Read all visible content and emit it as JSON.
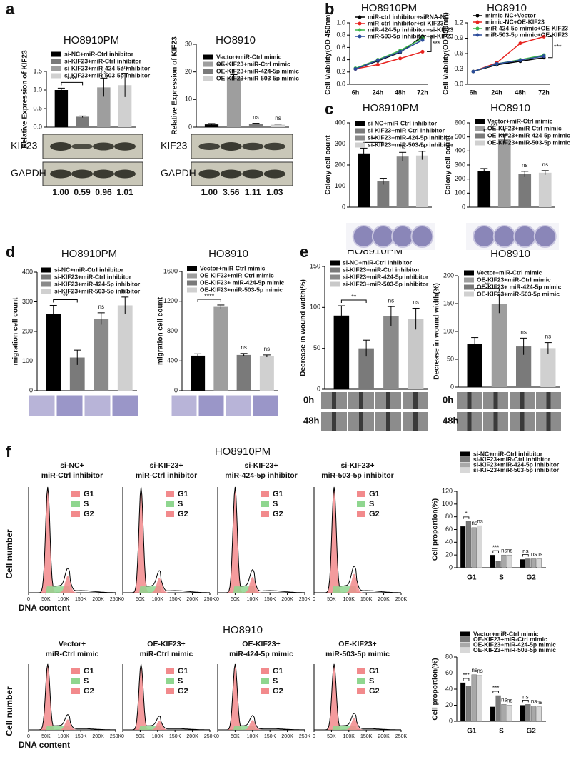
{
  "panel_labels": [
    "a",
    "b",
    "c",
    "d",
    "e",
    "f"
  ],
  "blots": [
    {
      "bands": [
        "KIF23",
        "GAPDH"
      ],
      "quant": [
        "1.00",
        "0.59",
        "0.96",
        "1.01"
      ]
    },
    {
      "bands": [
        "KIF23",
        "GAPDH"
      ],
      "quant": [
        "1.00",
        "3.56",
        "1.11",
        "1.03"
      ]
    }
  ],
  "wound_times": [
    "0h",
    "48h"
  ],
  "flow": {
    "sections": [
      {
        "title": "HO8910PM",
        "samples": [
          [
            "si-NC+",
            "miR-Ctrl inhibitor"
          ],
          [
            "si-KIF23+",
            "miR-Ctrl inhibitor"
          ],
          [
            "si-KIF23+",
            "miR-424-5p inhibitor"
          ],
          [
            "si-KIF23+",
            "miR-503-5p inhibitor"
          ]
        ]
      },
      {
        "title": "HO8910",
        "samples": [
          [
            "Vector+",
            "miR-Ctrl mimic"
          ],
          [
            "OE-KIF23+",
            "miR-Ctrl mimic"
          ],
          [
            "OE-KIF23+",
            "miR-424-5p mimic"
          ],
          [
            "OE-KIF23+",
            "miR-503-5p mimic"
          ]
        ]
      }
    ],
    "phases": [
      "G1",
      "S",
      "G2"
    ],
    "phase_colors": [
      "#f28a8c",
      "#8fd68f",
      "#f28a8c"
    ],
    "xticks": [
      "0",
      "50K",
      "100K",
      "150K",
      "200K",
      "250K"
    ],
    "y_label": "Cell number",
    "x_label": "DNA content"
  },
  "chart_data": [
    {
      "type": "bar",
      "title": "HO8910PM",
      "y_label": "Relative Expression of KIF23",
      "categories": [
        "si-NC+miR-Ctrl inhibitor",
        "si-KIF23+miR-Ctrl inhibitor",
        "si-KIF23+miR-424-5p inhibitor",
        "si-KIF23+miR-503-5p inhibitor"
      ],
      "colors": [
        "#000000",
        "#7a7a7a",
        "#9e9e9e",
        "#d0d0d0"
      ],
      "values": [
        1.0,
        0.28,
        1.07,
        1.13
      ],
      "errors": [
        0.05,
        0.02,
        0.25,
        0.32
      ],
      "sig": [
        null,
        "****",
        "ns",
        "ns"
      ],
      "ylim": [
        0,
        1.5
      ],
      "yticks": [
        {
          "value": 0,
          "label": "0.0"
        },
        {
          "value": 0.5,
          "label": "0.5"
        },
        {
          "value": 1,
          "label": "1.0"
        },
        {
          "value": 1.5,
          "label": "1.5"
        }
      ]
    },
    {
      "type": "bar",
      "title": "HO8910",
      "y_label": "Relative Expression of KIF23",
      "categories": [
        "Vector+miR-Ctrl mimic",
        "OE-KIF23+miR-Ctrl mimic",
        "OE-KIF23+miR-424-5p mimic",
        "OE-KIF23+miR-503-5p mimic"
      ],
      "colors": [
        "#000000",
        "#9e9e9e",
        "#7a7a7a",
        "#d0d0d0"
      ],
      "values": [
        1.0,
        18,
        1.1,
        0.9
      ],
      "errors": [
        0.3,
        1,
        0.3,
        0.2
      ],
      "sig": [
        null,
        "****",
        "ns",
        "ns"
      ],
      "ylim": [
        0,
        30
      ],
      "yticks": [
        0,
        10,
        20,
        30
      ]
    },
    {
      "type": "line",
      "title": "HO8910PM",
      "y_label": "Cell Viability(OD 450nm)",
      "categories": [
        "6h",
        "24h",
        "48h",
        "72h"
      ],
      "series": [
        {
          "name": "miR-ctrl inhibitor+siRNA-NC",
          "color": "#000000",
          "values": [
            0.25,
            0.38,
            0.52,
            0.78
          ]
        },
        {
          "name": "miR-ctrl inhibitor+si-KIF23",
          "color": "#e8231f",
          "values": [
            0.25,
            0.32,
            0.42,
            0.53
          ]
        },
        {
          "name": "miR-424-5p inhibitor+si-KIF23",
          "color": "#3cb44b",
          "values": [
            0.26,
            0.4,
            0.55,
            0.75
          ]
        },
        {
          "name": "miR-503-5p inhibitor+si-KIF23",
          "color": "#2b4c9b",
          "values": [
            0.25,
            0.39,
            0.53,
            0.72
          ]
        }
      ],
      "sig": "***",
      "ylim": [
        0,
        1
      ],
      "yticks": [
        {
          "value": 0,
          "label": "0.0"
        },
        {
          "value": 0.2,
          "label": "0.2"
        },
        {
          "value": 0.4,
          "label": "0.4"
        },
        {
          "value": 0.6,
          "label": "0.6"
        },
        {
          "value": 0.8,
          "label": "0.8"
        },
        {
          "value": 1,
          "label": "1.0"
        }
      ]
    },
    {
      "type": "line",
      "title": "HO8910",
      "y_label": "Cell Viability(OD 450nm)",
      "categories": [
        "6h",
        "24h",
        "48h",
        "72h"
      ],
      "series": [
        {
          "name": "mimic-NC+Vector",
          "color": "#000000",
          "values": [
            0.25,
            0.38,
            0.45,
            0.52
          ]
        },
        {
          "name": "mimic-NC+OE-KIF23",
          "color": "#e8231f",
          "values": [
            0.25,
            0.42,
            0.8,
            0.93
          ]
        },
        {
          "name": "miR-424-5p mimic+OE-KIF23",
          "color": "#3cb44b",
          "values": [
            0.25,
            0.4,
            0.48,
            0.57
          ]
        },
        {
          "name": "miR-503-5p mimic+OE-KIF23",
          "color": "#2b4c9b",
          "values": [
            0.25,
            0.4,
            0.47,
            0.55
          ]
        }
      ],
      "sig": "***",
      "ylim": [
        0,
        1.2
      ],
      "yticks": [
        {
          "value": 0,
          "label": "0.0"
        },
        {
          "value": 0.3,
          "label": "0.3"
        },
        {
          "value": 0.6,
          "label": "0.6"
        },
        {
          "value": 0.9,
          "label": "0.9"
        },
        {
          "value": 1.2,
          "label": "1.2"
        }
      ]
    },
    {
      "type": "bar",
      "title": "HO8910PM",
      "y_label": "Colony cell count",
      "categories": [
        "si-NC+miR-Ctrl inhibitor",
        "si-KIF23+miR-Ctrl inhibitor",
        "si-KIF23+miR-424-5p inhibitor",
        "si-KIF23+miR-503-5p inhibitor"
      ],
      "colors": [
        "#000000",
        "#7a7a7a",
        "#8a8a8a",
        "#d0d0d0"
      ],
      "values": [
        255,
        122,
        240,
        245
      ],
      "errors": [
        25,
        15,
        20,
        20
      ],
      "sig": [
        null,
        "**",
        "ns",
        "ns"
      ],
      "ylim": [
        0,
        400
      ],
      "yticks": [
        0,
        100,
        200,
        300,
        400
      ]
    },
    {
      "type": "bar",
      "title": "HO8910",
      "y_label": "Colony cell count",
      "categories": [
        "Vector+miR-Ctrl mimic",
        "OE-KIF23+miR-Ctrl mimic",
        "OE-KIF23+miR-424-5p mimic",
        "OE-KIF23+miR-503-5p mimic"
      ],
      "colors": [
        "#000000",
        "#9e9e9e",
        "#7a7a7a",
        "#d0d0d0"
      ],
      "values": [
        255,
        485,
        235,
        245
      ],
      "errors": [
        20,
        30,
        20,
        15
      ],
      "sig": [
        null,
        "***",
        "ns",
        "ns"
      ],
      "ylim": [
        0,
        600
      ],
      "yticks": [
        0,
        100,
        200,
        300,
        400,
        500,
        600
      ]
    },
    {
      "type": "bar",
      "title": "HO8910PM",
      "y_label": "migration cell count",
      "categories": [
        "si-NC+miR-Ctrl inhibitor",
        "si-KIF23+miR-Ctrl inhibitor",
        "si-KIF23+miR-424-5p inhibitor",
        "si-KIF23+miR-503-5p inhibitor"
      ],
      "colors": [
        "#000000",
        "#7a7a7a",
        "#8a8a8a",
        "#d0d0d0"
      ],
      "values": [
        260,
        112,
        243,
        288
      ],
      "errors": [
        28,
        25,
        20,
        28
      ],
      "sig": [
        null,
        "**",
        "ns",
        "ns"
      ],
      "ylim": [
        0,
        400
      ],
      "yticks": [
        0,
        100,
        200,
        300,
        400
      ]
    },
    {
      "type": "bar",
      "title": "HO8910",
      "y_label": "migration cell count",
      "categories": [
        "Vector+miR-Ctrl mimic",
        "OE-KIF23+miR-Ctrl mimic",
        "OE-KIF23+ miR-424-5p mimic",
        "OE-KIF23+miR-503-5p mimic"
      ],
      "colors": [
        "#000000",
        "#9e9e9e",
        "#7a7a7a",
        "#d0d0d0"
      ],
      "values": [
        470,
        1125,
        480,
        465
      ],
      "errors": [
        25,
        25,
        20,
        15
      ],
      "sig": [
        null,
        "****",
        "ns",
        "ns"
      ],
      "ylim": [
        0,
        1600
      ],
      "yticks": [
        0,
        400,
        800,
        1200,
        1600
      ]
    },
    {
      "type": "bar",
      "title": "HO8910PM",
      "y_label": "Decrease in wound width(%)",
      "categories": [
        "si-NC+miR-Ctrl inhibitor",
        "si-KIF23+miR-Ctrl inhibitor",
        "si-KIF23+miR-424-5p inhibitor",
        "si-KIF23+miR-503-5p inhibitor"
      ],
      "colors": [
        "#000000",
        "#7a7a7a",
        "#8a8a8a",
        "#c8c8c8"
      ],
      "values": [
        90,
        50,
        89,
        86
      ],
      "errors": [
        12,
        10,
        12,
        13
      ],
      "sig": [
        null,
        "**",
        "ns",
        "ns"
      ],
      "ylim": [
        0,
        150
      ],
      "yticks": [
        0,
        50,
        100,
        150
      ]
    },
    {
      "type": "bar",
      "title": "HO8910",
      "y_label": "Decrease in wound width(%)",
      "categories": [
        "Vector+miR-Ctrl mimic",
        "OE-KIF23+miR-Ctrl mimic",
        "OE-KIF23+ miR-424-5p mimic",
        "OE-KIF23+miR-503-5p mimic"
      ],
      "colors": [
        "#000000",
        "#9e9e9e",
        "#7a7a7a",
        "#d0d0d0"
      ],
      "values": [
        77,
        150,
        73,
        70
      ],
      "errors": [
        12,
        17,
        15,
        10
      ],
      "sig": [
        null,
        "**",
        "ns",
        "ns"
      ],
      "ylim": [
        0,
        200
      ],
      "yticks": [
        0,
        50,
        100,
        150,
        200
      ]
    },
    {
      "type": "grouped_bar",
      "y_label": "Cell proportion(%)",
      "categories": [
        "G1",
        "S",
        "G2"
      ],
      "series": [
        {
          "name": "si-NC+miR-Ctrl inhibitor",
          "color": "#000000",
          "values": [
            65,
            20,
            13
          ],
          "sig": [
            null,
            null,
            null
          ]
        },
        {
          "name": "si-KIF23+miR-Ctrl inhibitor",
          "color": "#7a7a7a",
          "values": [
            73,
            10,
            14
          ],
          "sig": [
            "*",
            "***",
            "ns"
          ]
        },
        {
          "name": "si-KIF23+miR-424-5p inhibitor",
          "color": "#a8a8a8",
          "values": [
            63,
            20,
            14
          ],
          "sig": [
            "ns",
            "ns",
            "ns"
          ]
        },
        {
          "name": "si-KIF23+miR-503-5p inhibitor",
          "color": "#d8d8d8",
          "values": [
            66,
            20,
            14
          ],
          "sig": [
            "ns",
            "ns",
            "ns"
          ]
        }
      ],
      "ylim": [
        0,
        120
      ],
      "yticks": [
        0,
        20,
        40,
        60,
        80,
        100,
        120
      ]
    },
    {
      "type": "grouped_bar",
      "y_label": "Cell proportion(%)",
      "categories": [
        "G1",
        "S",
        "G2"
      ],
      "series": [
        {
          "name": "Vector+miR-Ctrl mimic",
          "color": "#000000",
          "values": [
            48,
            18,
            20
          ],
          "sig": [
            null,
            null,
            null
          ]
        },
        {
          "name": "OE-KIF23+miR-Ctrl mimic",
          "color": "#7a7a7a",
          "values": [
            44,
            32,
            21
          ],
          "sig": [
            "***",
            "***",
            "ns"
          ]
        },
        {
          "name": "OE-KIF23+miR-424-5p mimic",
          "color": "#a8a8a8",
          "values": [
            58,
            21,
            19
          ],
          "sig": [
            "ns",
            "ns",
            "ns"
          ]
        },
        {
          "name": "OE-KIF23+miR-503-5p mimic",
          "color": "#d8d8d8",
          "values": [
            57,
            20,
            18
          ],
          "sig": [
            "ns",
            "ns",
            "ns"
          ]
        }
      ],
      "ylim": [
        0,
        80
      ],
      "yticks": [
        0,
        20,
        40,
        60,
        80
      ]
    }
  ]
}
